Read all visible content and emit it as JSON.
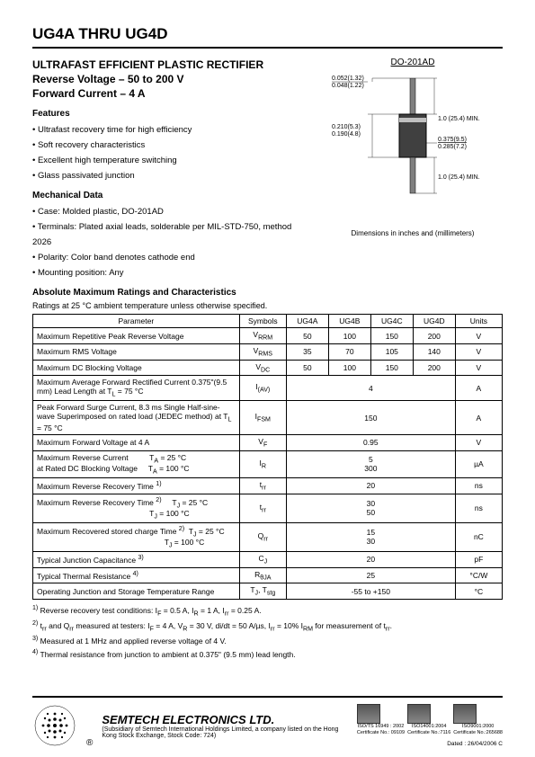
{
  "header": {
    "title": "UG4A THRU UG4D"
  },
  "subheading": {
    "line1": "ULTRAFAST EFFICIENT PLASTIC RECTIFIER",
    "line2": "Reverse Voltage – 50 to 200 V",
    "line3": "Forward Current – 4 A"
  },
  "features": {
    "title": "Features",
    "items": [
      "Ultrafast recovery time for high efficiency",
      "Soft recovery characteristics",
      "Excellent high temperature switching",
      "Glass passivated junction"
    ]
  },
  "mechanical": {
    "title": "Mechanical Data",
    "items": [
      "Case: Molded plastic, DO-201AD",
      "Terminals: Plated axial leads, solderable per MIL-STD-750, method 2026",
      "Polarity: Color band denotes cathode end",
      "Mounting position: Any"
    ]
  },
  "package": {
    "label": "DO-201AD",
    "dims": {
      "lead_dia_max": "0.052(1.32)",
      "lead_dia_min": "0.048(1.22)",
      "body_len_max": "0.210(5.3)",
      "body_len_min": "0.190(4.8)",
      "lead_len": "1.0 (25.4) MIN.",
      "body_dia_max": "0.375(9.5)",
      "body_dia_min": "0.285(7.2)",
      "lead_len2": "1.0 (25.4) MIN."
    },
    "caption": "Dimensions in inches and (millimeters)"
  },
  "ratings": {
    "title": "Absolute Maximum Ratings and Characteristics",
    "desc": "Ratings at 25 °C ambient temperature unless otherwise specified.",
    "headers": {
      "param": "Parameter",
      "symbols": "Symbols",
      "c1": "UG4A",
      "c2": "UG4B",
      "c3": "UG4C",
      "c4": "UG4D",
      "units": "Units"
    },
    "rows": [
      {
        "param": "Maximum Repetitive Peak Reverse Voltage",
        "sym": "V<sub>RRM</sub>",
        "vals": [
          "50",
          "100",
          "150",
          "200"
        ],
        "unit": "V"
      },
      {
        "param": "Maximum RMS Voltage",
        "sym": "V<sub>RMS</sub>",
        "vals": [
          "35",
          "70",
          "105",
          "140"
        ],
        "unit": "V"
      },
      {
        "param": "Maximum DC Blocking Voltage",
        "sym": "V<sub>DC</sub>",
        "vals": [
          "50",
          "100",
          "150",
          "200"
        ],
        "unit": "V"
      },
      {
        "param": "Maximum Average Forward Rectified Current 0.375\"(9.5 mm) Lead Length at T<sub>L</sub> = 75 °C",
        "sym": "I<sub>(AV)</sub>",
        "span": "4",
        "unit": "A"
      },
      {
        "param": "Peak Forward Surge Current, 8.3 ms Single Half-sine-wave Superimposed on rated load (JEDEC method) at T<sub>L</sub> = 75 °C",
        "sym": "I<sub>FSM</sub>",
        "span": "150",
        "unit": "A"
      },
      {
        "param": "Maximum Forward Voltage at 4 A",
        "sym": "V<sub>F</sub>",
        "span": "0.95",
        "unit": "V"
      },
      {
        "param": "Maximum Reverse Current&nbsp;&nbsp;&nbsp;&nbsp;&nbsp;&nbsp;&nbsp;&nbsp;&nbsp;&nbsp;T<sub>A</sub> = 25 °C<br>at Rated DC Blocking Voltage&nbsp;&nbsp;&nbsp;&nbsp;&nbsp;T<sub>A</sub> = 100 °C",
        "sym": "I<sub>R</sub>",
        "span": "5<br>300",
        "unit": "µA"
      },
      {
        "param": "Maximum Reverse Recovery Time <sup>1)</sup>",
        "sym": "t<sub>rr</sub>",
        "span": "20",
        "unit": "ns"
      },
      {
        "param": "Maximum Reverse Recovery Time <sup>2)</sup>&nbsp;&nbsp;&nbsp;&nbsp;&nbsp;T<sub>J</sub> = 25 °C<br>&nbsp;&nbsp;&nbsp;&nbsp;&nbsp;&nbsp;&nbsp;&nbsp;&nbsp;&nbsp;&nbsp;&nbsp;&nbsp;&nbsp;&nbsp;&nbsp;&nbsp;&nbsp;&nbsp;&nbsp;&nbsp;&nbsp;&nbsp;&nbsp;&nbsp;&nbsp;&nbsp;&nbsp;&nbsp;&nbsp;&nbsp;&nbsp;&nbsp;&nbsp;&nbsp;&nbsp;&nbsp;&nbsp;&nbsp;&nbsp;&nbsp;&nbsp;&nbsp;&nbsp;&nbsp;&nbsp;&nbsp;&nbsp;&nbsp;&nbsp;&nbsp;&nbsp;&nbsp;T<sub>J</sub> = 100 °C",
        "sym": "t<sub>rr</sub>",
        "span": "30<br>50",
        "unit": "ns"
      },
      {
        "param": "Maximum Recovered stored charge Time <sup>2)</sup>&nbsp;&nbsp;T<sub>J</sub> = 25 °C<br>&nbsp;&nbsp;&nbsp;&nbsp;&nbsp;&nbsp;&nbsp;&nbsp;&nbsp;&nbsp;&nbsp;&nbsp;&nbsp;&nbsp;&nbsp;&nbsp;&nbsp;&nbsp;&nbsp;&nbsp;&nbsp;&nbsp;&nbsp;&nbsp;&nbsp;&nbsp;&nbsp;&nbsp;&nbsp;&nbsp;&nbsp;&nbsp;&nbsp;&nbsp;&nbsp;&nbsp;&nbsp;&nbsp;&nbsp;&nbsp;&nbsp;&nbsp;&nbsp;&nbsp;&nbsp;&nbsp;&nbsp;&nbsp;&nbsp;&nbsp;&nbsp;&nbsp;&nbsp;&nbsp;&nbsp;&nbsp;&nbsp;&nbsp;&nbsp;&nbsp;T<sub>J</sub> = 100 °C",
        "sym": "Q<sub>rr</sub>",
        "span": "15<br>30",
        "unit": "nC"
      },
      {
        "param": "Typical Junction Capacitance <sup>3)</sup>",
        "sym": "C<sub>J</sub>",
        "span": "20",
        "unit": "pF"
      },
      {
        "param": "Typical Thermal Resistance <sup>4)</sup>",
        "sym": "R<sub>θJA</sub>",
        "span": "25",
        "unit": "°C/W"
      },
      {
        "param": "Operating Junction and Storage Temperature Range",
        "sym": "T<sub>J</sub>, T<sub>stg</sub>",
        "span": "-55 to +150",
        "unit": "°C"
      }
    ],
    "notes": [
      "<sup>1)</sup> Reverse recovery test conditions: I<sub>F</sub> = 0.5 A, I<sub>R</sub> = 1 A, I<sub>rr</sub> = 0.25 A.",
      "<sup>2)</sup> t<sub>rr</sub> and Q<sub>rr</sub> measured at testers: I<sub>F</sub> = 4 A, V<sub>R</sub> = 30 V, di/dt = 50 A/µs, I<sub>rr</sub> = 10% I<sub>RM</sub> for measurement of t<sub>rr</sub>.",
      "<sup>3)</sup> Measured at 1 MHz and applied reverse voltage of 4 V.",
      "<sup>4)</sup> Thermal resistance from junction to ambient at 0.375\" (9.5 mm) lead length."
    ]
  },
  "footer": {
    "company": "SEMTECH ELECTRONICS LTD.",
    "subsidiary": "(Subsidiary of Semtech International Holdings Limited, a company listed on the Hong Kong Stock Exchange, Stock Code: 724)",
    "reg": "®",
    "certs": [
      {
        "top": "ISO/TS 16949 : 2002",
        "bot": "Certificate No.: 09109"
      },
      {
        "top": "ISO14001:2004",
        "bot": "Certificate No.:7116"
      },
      {
        "top": "ISO9001:2000",
        "bot": "Certificate No.:265688"
      }
    ],
    "date": "Dated : 26/04/2006  C"
  }
}
